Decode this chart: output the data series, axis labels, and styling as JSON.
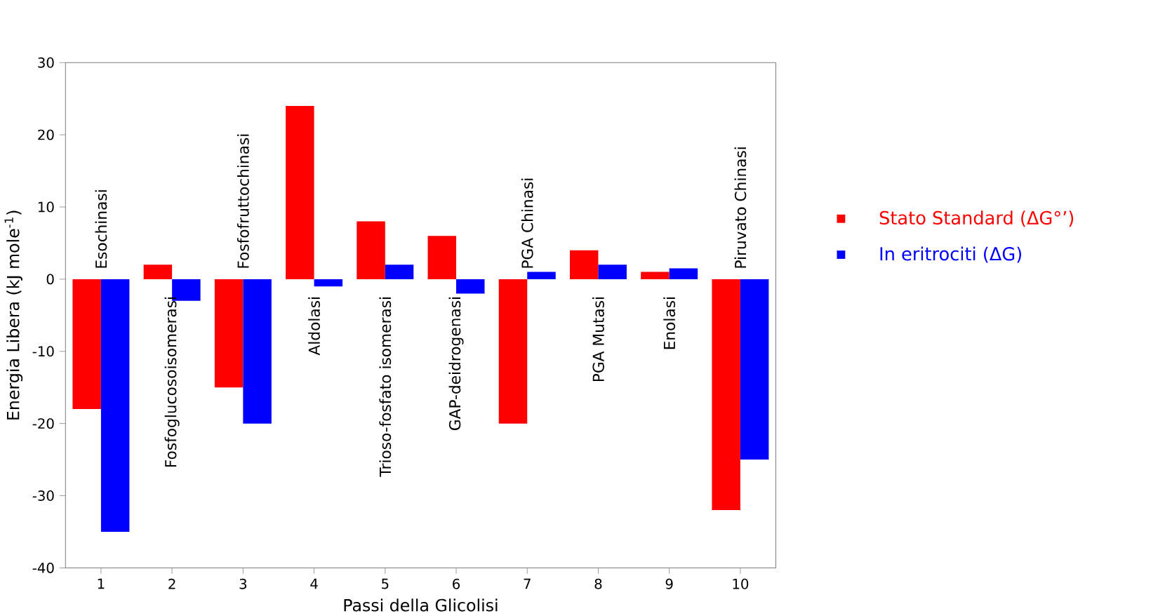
{
  "chart_data": {
    "type": "bar",
    "xlabel": "Passi della Glicolisi",
    "ylabel": "Energia Libera (kJ mole$^{-1}$)",
    "categories": [
      "1",
      "2",
      "3",
      "4",
      "5",
      "6",
      "7",
      "8",
      "9",
      "10"
    ],
    "series": [
      {
        "name": "Stato Standard (ΔG°’)",
        "color": "#ff0000",
        "values": [
          -18,
          2,
          -15,
          24,
          8,
          6,
          -20,
          4,
          1,
          -32
        ]
      },
      {
        "name": "In eritrociti (ΔG)",
        "color": "#0000ff",
        "values": [
          -35,
          -3,
          -20,
          -1,
          2,
          -2,
          1,
          2,
          1.5,
          -25
        ]
      }
    ],
    "ylim": [
      -40,
      30
    ],
    "yticks": [
      -40,
      -30,
      -20,
      -10,
      0,
      10,
      20,
      30
    ],
    "legend": "right",
    "annotations": [
      "Esochinasi",
      "Fosfoglucosoisomerasi",
      "Fosfofruttochinasi",
      "Aldolasi",
      "Trioso-fosfato isomerasi",
      "GAP-deidrogenasi",
      "PGA Chinasi",
      "PGA Mutasi",
      "Enolasi",
      "Piruvato Chinasi"
    ]
  }
}
